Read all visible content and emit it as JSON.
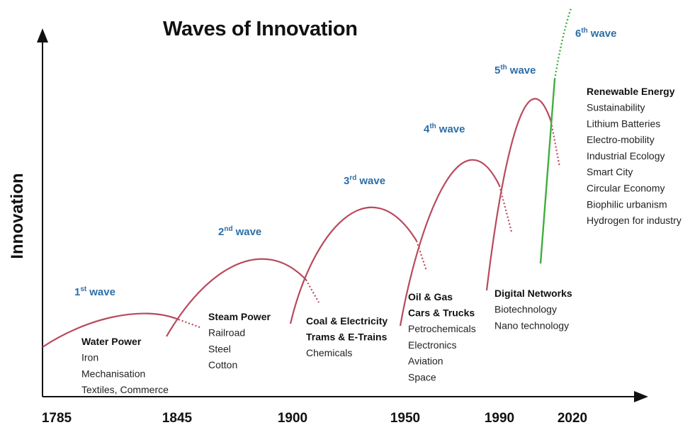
{
  "title": "Waves of Innovation",
  "y_axis_label": "Innovation",
  "years": [
    "1785",
    "1845",
    "1900",
    "1950",
    "1990",
    "2020"
  ],
  "waves": [
    {
      "label": {
        "num": "1",
        "sup": "st",
        "word": "wave"
      },
      "headings": [
        "Water Power"
      ],
      "items": [
        "Iron",
        "Mechanisation",
        "Textiles, Commerce"
      ]
    },
    {
      "label": {
        "num": "2",
        "sup": "nd",
        "word": "wave"
      },
      "headings": [
        "Steam Power"
      ],
      "items": [
        "Railroad",
        "Steel",
        "Cotton"
      ]
    },
    {
      "label": {
        "num": "3",
        "sup": "rd",
        "word": "wave"
      },
      "headings": [
        "Coal & Electricity",
        "Trams & E-Trains"
      ],
      "items": [
        "Chemicals"
      ]
    },
    {
      "label": {
        "num": "4",
        "sup": "th",
        "word": "wave"
      },
      "headings": [
        "Oil & Gas",
        "Cars & Trucks"
      ],
      "items": [
        "Petrochemicals",
        "Electronics",
        "Aviation",
        "Space"
      ]
    },
    {
      "label": {
        "num": "5",
        "sup": "th",
        "word": "wave"
      },
      "headings": [
        "Digital Networks"
      ],
      "items": [
        "Biotechnology",
        "Nano technology"
      ]
    },
    {
      "label": {
        "num": "6",
        "sup": "th",
        "word": "wave"
      },
      "headings": [
        "Renewable Energy"
      ],
      "items": [
        "Sustainability",
        "Lithium Batteries",
        "Electro-mobility",
        "Industrial Ecology",
        "Smart City",
        "Circular Economy",
        "Biophilic urbanism",
        "Hydrogen for industry"
      ]
    }
  ]
}
